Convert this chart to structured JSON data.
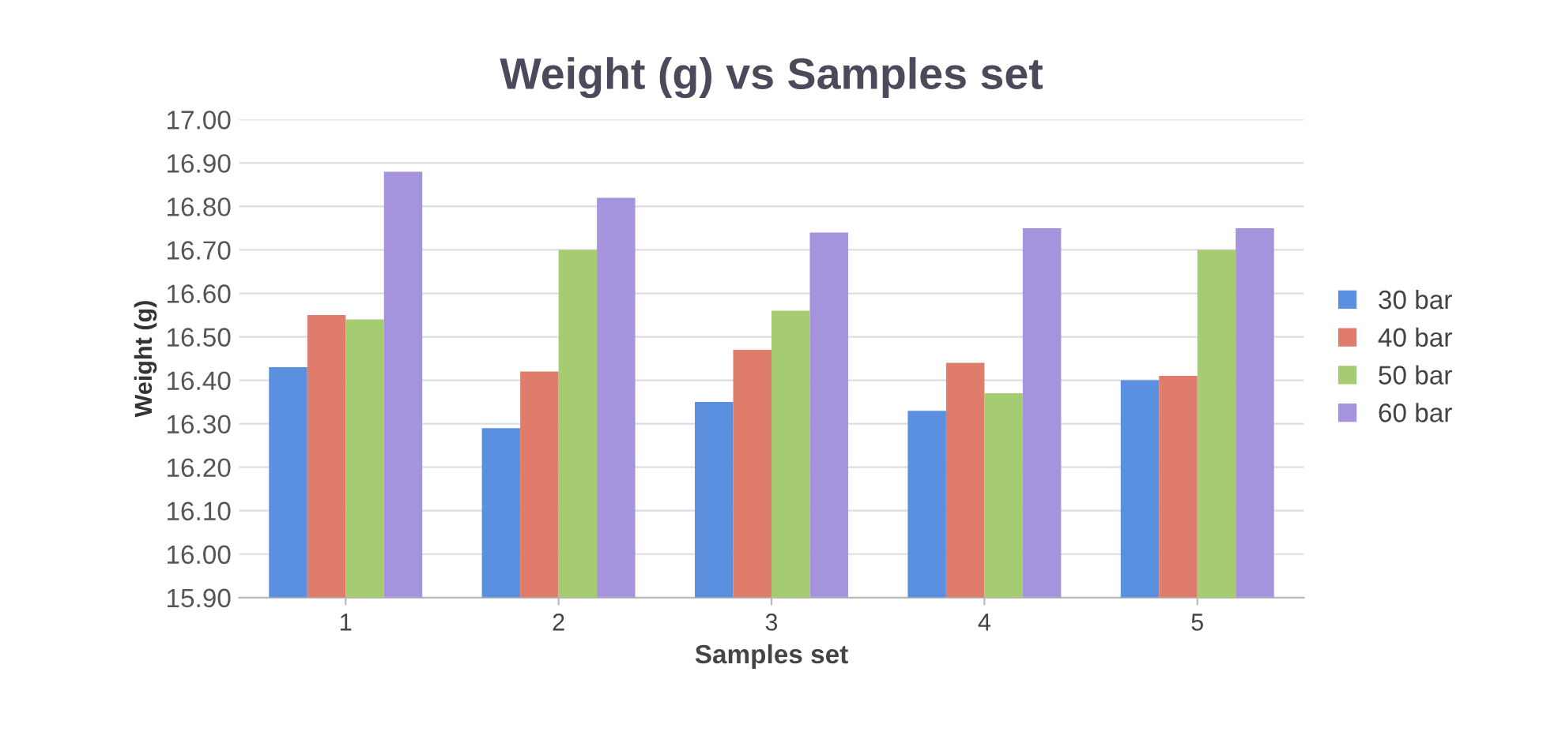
{
  "chart_data": {
    "type": "bar",
    "title": "Weight (g) vs Samples set",
    "xlabel": "Samples set",
    "ylabel": "Weight (g)",
    "categories": [
      "1",
      "2",
      "3",
      "4",
      "5"
    ],
    "series": [
      {
        "name": "30 bar",
        "color": "#5b8fe0",
        "values": [
          16.43,
          16.29,
          16.35,
          16.33,
          16.4
        ]
      },
      {
        "name": "40 bar",
        "color": "#e07c6c",
        "values": [
          16.55,
          16.42,
          16.47,
          16.44,
          16.41
        ]
      },
      {
        "name": "50 bar",
        "color": "#a6cc72",
        "values": [
          16.54,
          16.7,
          16.56,
          16.37,
          16.7
        ]
      },
      {
        "name": "60 bar",
        "color": "#a594dd",
        "values": [
          16.88,
          16.82,
          16.74,
          16.75,
          16.75
        ]
      }
    ],
    "ylim": [
      15.9,
      17.0
    ],
    "yticks": [
      {
        "value": 15.9,
        "label": "15.90"
      },
      {
        "value": 16.0,
        "label": "16.00"
      },
      {
        "value": 16.1,
        "label": "16.10"
      },
      {
        "value": 16.2,
        "label": "16.20"
      },
      {
        "value": 16.3,
        "label": "16.30"
      },
      {
        "value": 16.4,
        "label": "16.40"
      },
      {
        "value": 16.5,
        "label": "16.50"
      },
      {
        "value": 16.6,
        "label": "16.60"
      },
      {
        "value": 16.7,
        "label": "16.70"
      },
      {
        "value": 16.8,
        "label": "16.80"
      },
      {
        "value": 16.9,
        "label": "16.90"
      },
      {
        "value": 17.0,
        "label": "17.00"
      }
    ],
    "grid": "y",
    "legend": "right"
  }
}
